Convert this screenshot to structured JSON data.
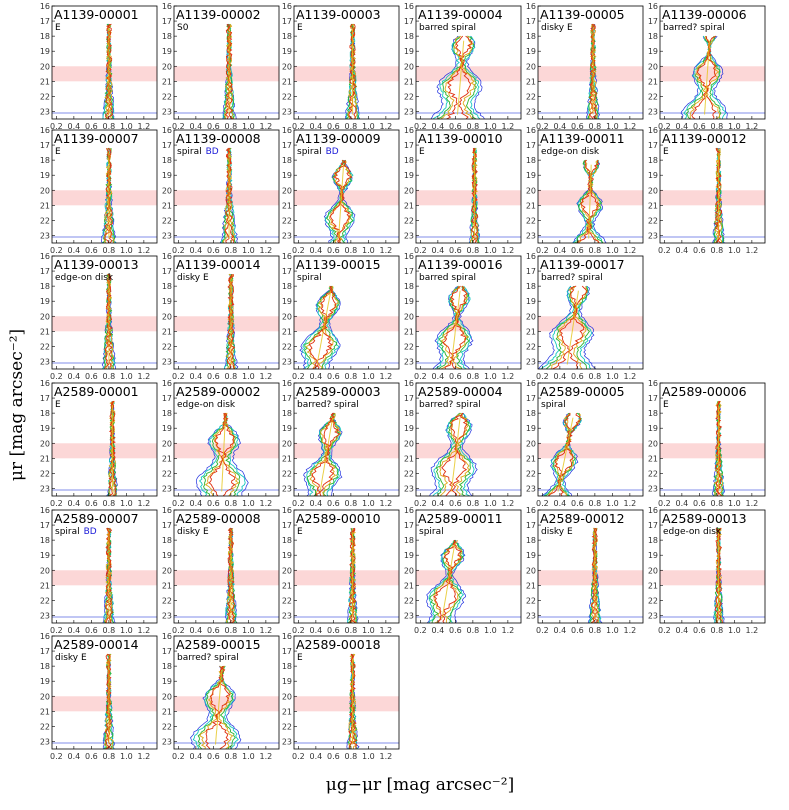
{
  "chart_data": {
    "type": "contour",
    "layout": "grid",
    "grid": {
      "rows": 6,
      "cols": 6
    },
    "xlabel": "μg−μr [mag arcsec⁻²]",
    "ylabel": "μr [mag arcsec⁻²]",
    "xlim": [
      0.15,
      1.35
    ],
    "ylim": [
      23.5,
      16
    ],
    "x_ticks": [
      "0.2",
      "0.4",
      "0.6",
      "0.8",
      "1.0",
      "1.2"
    ],
    "y_ticks": [
      "16",
      "17",
      "18",
      "19",
      "20",
      "21",
      "22",
      "23"
    ],
    "shaded_band": [
      20,
      21
    ],
    "reference_line_y": 23.1,
    "colors": {
      "band": "#fcd7d7",
      "ref_line": "#9aa5ee",
      "contours": [
        "#1f2fe0",
        "#18c9c0",
        "#2db52d",
        "#e0a81c",
        "#e03010"
      ],
      "bd": "#1a1ad8"
    },
    "panels": [
      {
        "id": "A1139-00001",
        "type": "E",
        "bd": false,
        "kind": "E",
        "color": 0.8,
        "width": 0.08
      },
      {
        "id": "A1139-00002",
        "type": "S0",
        "bd": false,
        "kind": "E",
        "color": 0.78,
        "width": 0.09
      },
      {
        "id": "A1139-00003",
        "type": "E",
        "bd": false,
        "kind": "E",
        "color": 0.82,
        "width": 0.1
      },
      {
        "id": "A1139-00004",
        "type": "barred spiral",
        "bd": false,
        "kind": "spiral",
        "color": 0.7,
        "width": 0.3
      },
      {
        "id": "A1139-00005",
        "type": "disky E",
        "bd": false,
        "kind": "E",
        "color": 0.78,
        "width": 0.09
      },
      {
        "id": "A1139-00006",
        "type": "barred? spiral",
        "bd": false,
        "kind": "spiral",
        "color": 0.72,
        "width": 0.22
      },
      {
        "id": "A1139-00007",
        "type": "E",
        "bd": false,
        "kind": "E",
        "color": 0.8,
        "width": 0.1
      },
      {
        "id": "A1139-00008",
        "type": "spiral",
        "bd": true,
        "kind": "E",
        "color": 0.78,
        "width": 0.12
      },
      {
        "id": "A1139-00009",
        "type": "spiral",
        "bd": true,
        "kind": "spiral",
        "color": 0.72,
        "width": 0.16
      },
      {
        "id": "A1139-00010",
        "type": "E",
        "bd": false,
        "kind": "E",
        "color": 0.82,
        "width": 0.07
      },
      {
        "id": "A1139-00011",
        "type": "edge-on disk",
        "bd": false,
        "kind": "spiral",
        "color": 0.76,
        "width": 0.14
      },
      {
        "id": "A1139-00012",
        "type": "E",
        "bd": false,
        "kind": "E",
        "color": 0.82,
        "width": 0.08
      },
      {
        "id": "A1139-00013",
        "type": "edge-on disk",
        "bd": false,
        "kind": "E",
        "color": 0.8,
        "width": 0.1
      },
      {
        "id": "A1139-00014",
        "type": "disky E",
        "bd": false,
        "kind": "E",
        "color": 0.8,
        "width": 0.09
      },
      {
        "id": "A1139-00015",
        "type": "spiral",
        "bd": false,
        "kind": "spiral",
        "color": 0.58,
        "width": 0.22
      },
      {
        "id": "A1139-00016",
        "type": "barred spiral",
        "bd": false,
        "kind": "spiral",
        "color": 0.66,
        "width": 0.22
      },
      {
        "id": "A1139-00017",
        "type": "barred? spiral",
        "bd": false,
        "kind": "spiral",
        "color": 0.62,
        "width": 0.3
      },
      null,
      {
        "id": "A2589-00001",
        "type": "E",
        "bd": false,
        "kind": "E",
        "color": 0.84,
        "width": 0.07
      },
      {
        "id": "A2589-00002",
        "type": "edge-on disk",
        "bd": false,
        "kind": "spiral",
        "color": 0.74,
        "width": 0.28
      },
      {
        "id": "A2589-00003",
        "type": "barred? spiral",
        "bd": false,
        "kind": "spiral",
        "color": 0.6,
        "width": 0.2
      },
      {
        "id": "A2589-00004",
        "type": "barred? spiral",
        "bd": false,
        "kind": "spiral",
        "color": 0.66,
        "width": 0.28
      },
      {
        "id": "A2589-00005",
        "type": "spiral",
        "bd": false,
        "kind": "spiral",
        "color": 0.56,
        "width": 0.14
      },
      {
        "id": "A2589-00006",
        "type": "E",
        "bd": false,
        "kind": "E",
        "color": 0.82,
        "width": 0.08
      },
      {
        "id": "A2589-00007",
        "type": "spiral",
        "bd": true,
        "kind": "E",
        "color": 0.8,
        "width": 0.08
      },
      {
        "id": "A2589-00008",
        "type": "disky E",
        "bd": false,
        "kind": "E",
        "color": 0.8,
        "width": 0.09
      },
      {
        "id": "A2589-00010",
        "type": "E",
        "bd": false,
        "kind": "E",
        "color": 0.82,
        "width": 0.07
      },
      {
        "id": "A2589-00011",
        "type": "spiral",
        "bd": false,
        "kind": "spiral",
        "color": 0.6,
        "width": 0.22
      },
      {
        "id": "A2589-00012",
        "type": "disky E",
        "bd": false,
        "kind": "E",
        "color": 0.8,
        "width": 0.09
      },
      {
        "id": "A2589-00013",
        "type": "edge-on disk",
        "bd": false,
        "kind": "E",
        "color": 0.82,
        "width": 0.07
      },
      {
        "id": "A2589-00014",
        "type": "disky E",
        "bd": false,
        "kind": "E",
        "color": 0.8,
        "width": 0.08
      },
      {
        "id": "A2589-00015",
        "type": "barred? spiral",
        "bd": false,
        "kind": "spiral",
        "color": 0.7,
        "width": 0.26
      },
      {
        "id": "A2589-00018",
        "type": "E",
        "bd": false,
        "kind": "E",
        "color": 0.82,
        "width": 0.08
      },
      null,
      null,
      null
    ]
  }
}
